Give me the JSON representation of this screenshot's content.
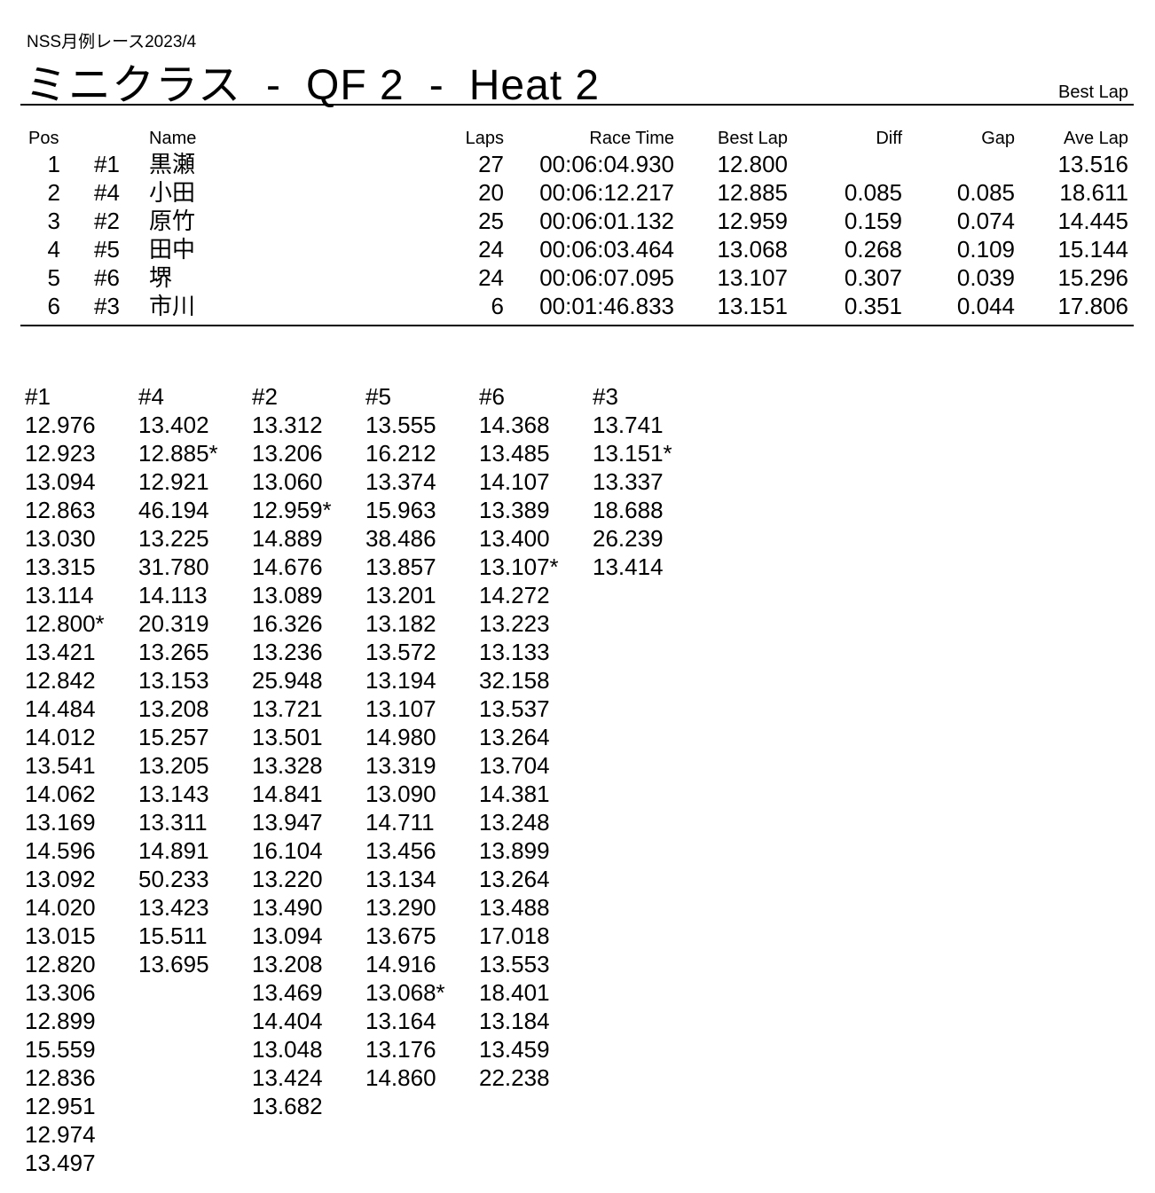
{
  "header": {
    "event": "NSS月例レース2023/4",
    "title_parts": [
      "ミニクラス",
      "-",
      "QF 2",
      "-",
      "Heat 2"
    ],
    "report_type": "Best Lap"
  },
  "results": {
    "columns": [
      "Pos",
      "Name",
      "Laps",
      "Race Time",
      "Best Lap",
      "Diff",
      "Gap",
      "Ave Lap"
    ],
    "rows": [
      {
        "pos": "1",
        "car": "#1",
        "name": "黒瀬",
        "laps": "27",
        "race_time": "00:06:04.930",
        "best_lap": "12.800",
        "diff": "",
        "gap": "",
        "ave_lap": "13.516"
      },
      {
        "pos": "2",
        "car": "#4",
        "name": "小田",
        "laps": "20",
        "race_time": "00:06:12.217",
        "best_lap": "12.885",
        "diff": "0.085",
        "gap": "0.085",
        "ave_lap": "18.611"
      },
      {
        "pos": "3",
        "car": "#2",
        "name": "原竹",
        "laps": "25",
        "race_time": "00:06:01.132",
        "best_lap": "12.959",
        "diff": "0.159",
        "gap": "0.074",
        "ave_lap": "14.445"
      },
      {
        "pos": "4",
        "car": "#5",
        "name": "田中",
        "laps": "24",
        "race_time": "00:06:03.464",
        "best_lap": "13.068",
        "diff": "0.268",
        "gap": "0.109",
        "ave_lap": "15.144"
      },
      {
        "pos": "5",
        "car": "#6",
        "name": "堺",
        "laps": "24",
        "race_time": "00:06:07.095",
        "best_lap": "13.107",
        "diff": "0.307",
        "gap": "0.039",
        "ave_lap": "15.296"
      },
      {
        "pos": "6",
        "car": "#3",
        "name": "市川",
        "laps": "6",
        "race_time": "00:01:46.833",
        "best_lap": "13.151",
        "diff": "0.351",
        "gap": "0.044",
        "ave_lap": "17.806"
      }
    ]
  },
  "lap_times": [
    {
      "car": "#1",
      "laps": [
        "12.976",
        "12.923",
        "13.094",
        "12.863",
        "13.030",
        "13.315",
        "13.114",
        "12.800*",
        "13.421",
        "12.842",
        "14.484",
        "14.012",
        "13.541",
        "14.062",
        "13.169",
        "14.596",
        "13.092",
        "14.020",
        "13.015",
        "12.820",
        "13.306",
        "12.899",
        "15.559",
        "12.836",
        "12.951",
        "12.974",
        "13.497"
      ]
    },
    {
      "car": "#4",
      "laps": [
        "13.402",
        "12.885*",
        "12.921",
        "46.194",
        "13.225",
        "31.780",
        "14.113",
        "20.319",
        "13.265",
        "13.153",
        "13.208",
        "15.257",
        "13.205",
        "13.143",
        "13.311",
        "14.891",
        "50.233",
        "13.423",
        "15.511",
        "13.695"
      ]
    },
    {
      "car": "#2",
      "laps": [
        "13.312",
        "13.206",
        "13.060",
        "12.959*",
        "14.889",
        "14.676",
        "13.089",
        "16.326",
        "13.236",
        "25.948",
        "13.721",
        "13.501",
        "13.328",
        "14.841",
        "13.947",
        "16.104",
        "13.220",
        "13.490",
        "13.094",
        "13.208",
        "13.469",
        "14.404",
        "13.048",
        "13.424",
        "13.682"
      ]
    },
    {
      "car": "#5",
      "laps": [
        "13.555",
        "16.212",
        "13.374",
        "15.963",
        "38.486",
        "13.857",
        "13.201",
        "13.182",
        "13.572",
        "13.194",
        "13.107",
        "14.980",
        "13.319",
        "13.090",
        "14.711",
        "13.456",
        "13.134",
        "13.290",
        "13.675",
        "14.916",
        "13.068*",
        "13.164",
        "13.176",
        "14.860"
      ]
    },
    {
      "car": "#6",
      "laps": [
        "14.368",
        "13.485",
        "14.107",
        "13.389",
        "13.400",
        "13.107*",
        "14.272",
        "13.223",
        "13.133",
        "32.158",
        "13.537",
        "13.264",
        "13.704",
        "14.381",
        "13.248",
        "13.899",
        "13.264",
        "13.488",
        "17.018",
        "13.553",
        "18.401",
        "13.184",
        "13.459",
        "22.238"
      ]
    },
    {
      "car": "#3",
      "laps": [
        "13.741",
        "13.151*",
        "13.337",
        "18.688",
        "26.239",
        "13.414"
      ]
    }
  ]
}
